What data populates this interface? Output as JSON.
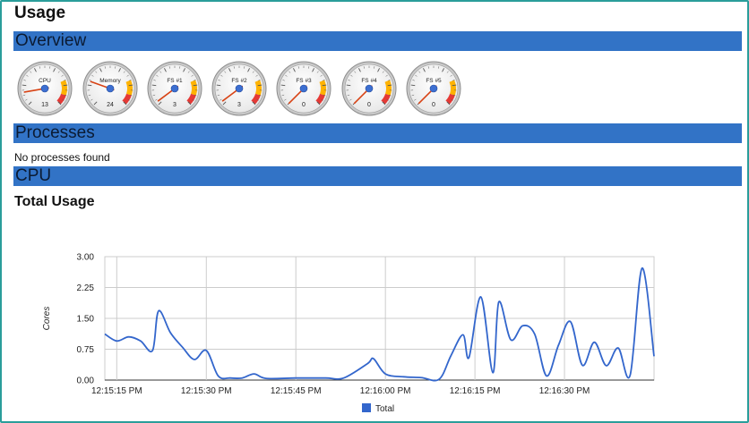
{
  "page": {
    "title": "Usage"
  },
  "sections": {
    "overview": "Overview",
    "processes": "Processes",
    "cpu": "CPU"
  },
  "gauges": [
    {
      "label": "CPU",
      "value": "13"
    },
    {
      "label": "Memory",
      "value": "24"
    },
    {
      "label": "FS #1",
      "value": "3"
    },
    {
      "label": "FS #2",
      "value": "3"
    },
    {
      "label": "FS #3",
      "value": "0"
    },
    {
      "label": "FS #4",
      "value": "0"
    },
    {
      "label": "FS #5",
      "value": "0"
    }
  ],
  "processes": {
    "empty_text": "No processes found"
  },
  "cpu": {
    "subtitle": "Total Usage"
  },
  "colors": {
    "section_bar": "#3273c6",
    "series": "#3366cc",
    "frame": "#2a9d9a"
  },
  "chart_data": {
    "type": "line",
    "ylabel": "Cores",
    "ylim": [
      0,
      3
    ],
    "yticks": [
      "3.00",
      "2.25",
      "1.50",
      "0.75",
      "0.00"
    ],
    "xlim": [
      "12:15:13 PM",
      "12:16:41 PM"
    ],
    "xticks": [
      "12:15:15 PM",
      "12:15:30 PM",
      "12:15:45 PM",
      "12:16:00 PM",
      "12:16:15 PM",
      "12:16:30 PM"
    ],
    "grid": true,
    "legend": "bottom",
    "series": [
      {
        "name": "Total",
        "points": [
          [
            "12:15:13 PM",
            1.12
          ],
          [
            "12:15:15 PM",
            0.95
          ],
          [
            "12:15:17 PM",
            1.05
          ],
          [
            "12:15:19 PM",
            0.95
          ],
          [
            "12:15:21 PM",
            0.72
          ],
          [
            "12:15:22 PM",
            1.68
          ],
          [
            "12:15:24 PM",
            1.15
          ],
          [
            "12:15:26 PM",
            0.8
          ],
          [
            "12:15:28 PM",
            0.5
          ],
          [
            "12:15:30 PM",
            0.72
          ],
          [
            "12:15:32 PM",
            0.1
          ],
          [
            "12:15:34 PM",
            0.05
          ],
          [
            "12:15:36 PM",
            0.05
          ],
          [
            "12:15:38 PM",
            0.15
          ],
          [
            "12:15:40 PM",
            0.04
          ],
          [
            "12:15:45 PM",
            0.05
          ],
          [
            "12:15:50 PM",
            0.05
          ],
          [
            "12:15:53 PM",
            0.05
          ],
          [
            "12:15:57 PM",
            0.4
          ],
          [
            "12:15:58 PM",
            0.52
          ],
          [
            "12:16:00 PM",
            0.15
          ],
          [
            "12:16:03 PM",
            0.08
          ],
          [
            "12:16:06 PM",
            0.06
          ],
          [
            "12:16:09 PM",
            0.02
          ],
          [
            "12:16:11 PM",
            0.6
          ],
          [
            "12:16:13 PM",
            1.1
          ],
          [
            "12:16:14 PM",
            0.55
          ],
          [
            "12:16:16 PM",
            2.02
          ],
          [
            "12:16:18 PM",
            0.18
          ],
          [
            "12:16:19 PM",
            1.9
          ],
          [
            "12:16:21 PM",
            0.98
          ],
          [
            "12:16:23 PM",
            1.32
          ],
          [
            "12:16:25 PM",
            1.12
          ],
          [
            "12:16:27 PM",
            0.1
          ],
          [
            "12:16:29 PM",
            0.85
          ],
          [
            "12:16:31 PM",
            1.42
          ],
          [
            "12:16:33 PM",
            0.36
          ],
          [
            "12:16:35 PM",
            0.92
          ],
          [
            "12:16:37 PM",
            0.35
          ],
          [
            "12:16:39 PM",
            0.78
          ],
          [
            "12:16:41 PM",
            0.12
          ],
          [
            "12:16:43 PM",
            2.72
          ],
          [
            "12:16:45 PM",
            0.58
          ]
        ]
      }
    ]
  }
}
